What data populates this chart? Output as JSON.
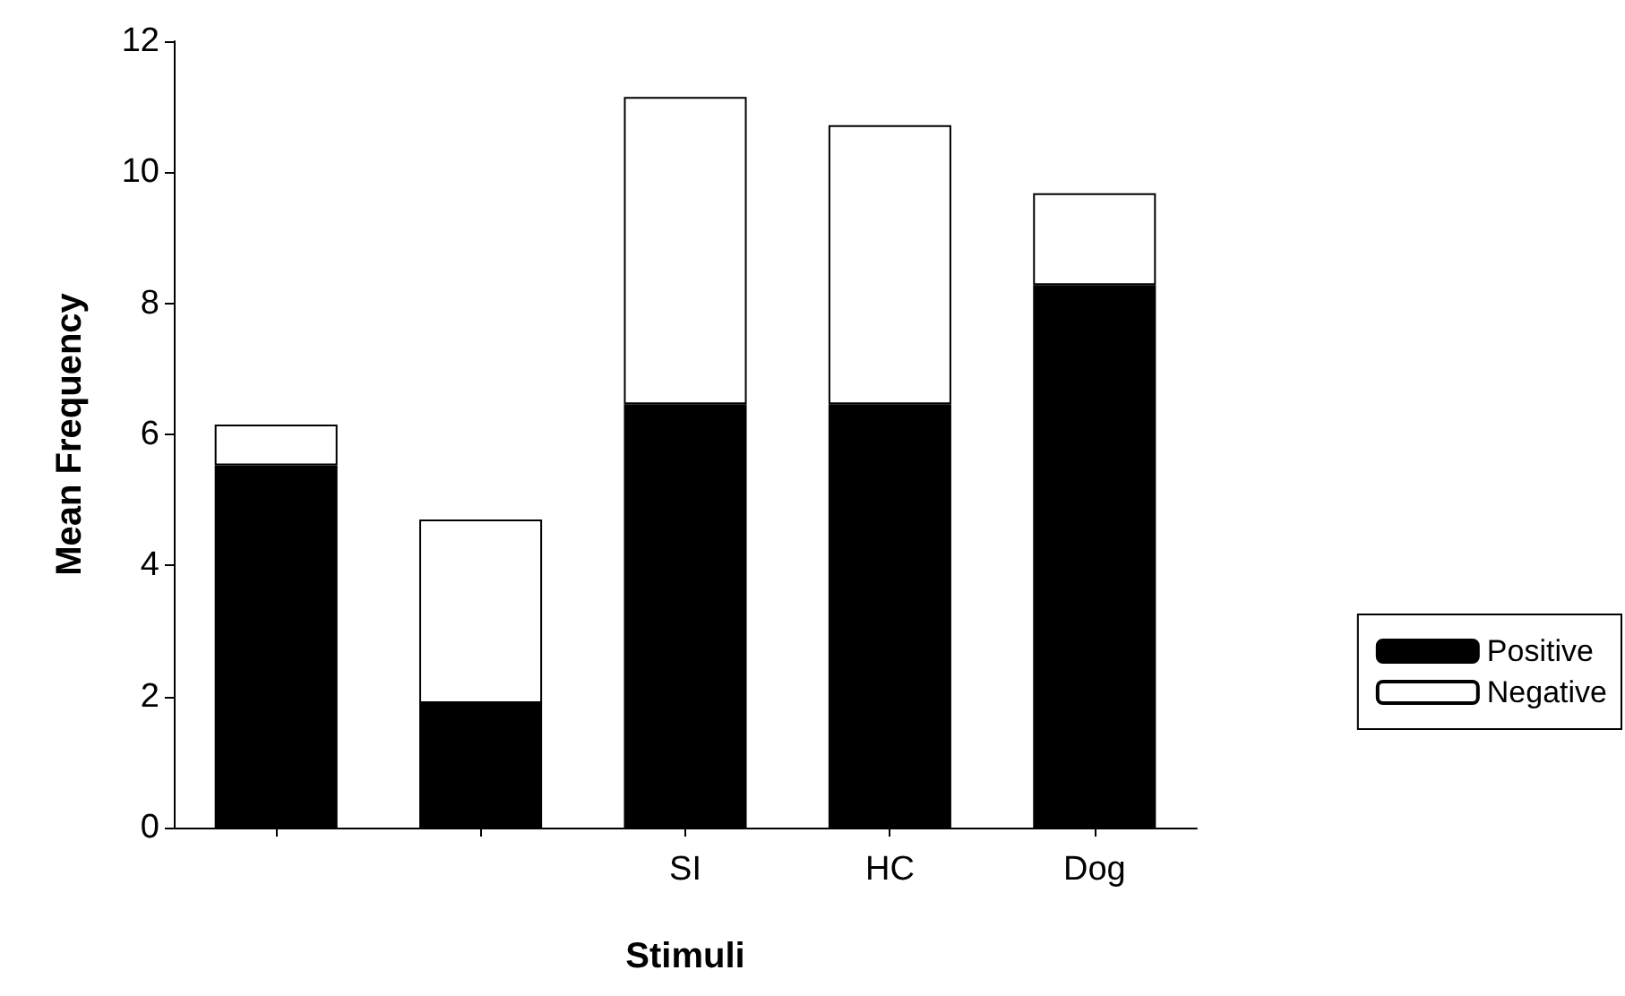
{
  "chart_data": {
    "type": "bar",
    "stacked": true,
    "xlabel": "Stimuli",
    "ylabel": "Mean Frequency",
    "categories": [
      null,
      null,
      "SI",
      "HC",
      "Dog"
    ],
    "series": [
      {
        "name": "Positive",
        "color": "#000000",
        "values": [
          5.53,
          1.9,
          6.46,
          6.46,
          8.28
        ]
      },
      {
        "name": "Negative",
        "color": "#ffffff",
        "values": [
          0.62,
          2.8,
          4.69,
          4.26,
          1.4
        ]
      }
    ],
    "ylim": [
      0,
      12
    ],
    "yticks": [
      0,
      2,
      4,
      6,
      8,
      10,
      12
    ],
    "grid": false,
    "legend": "right"
  }
}
